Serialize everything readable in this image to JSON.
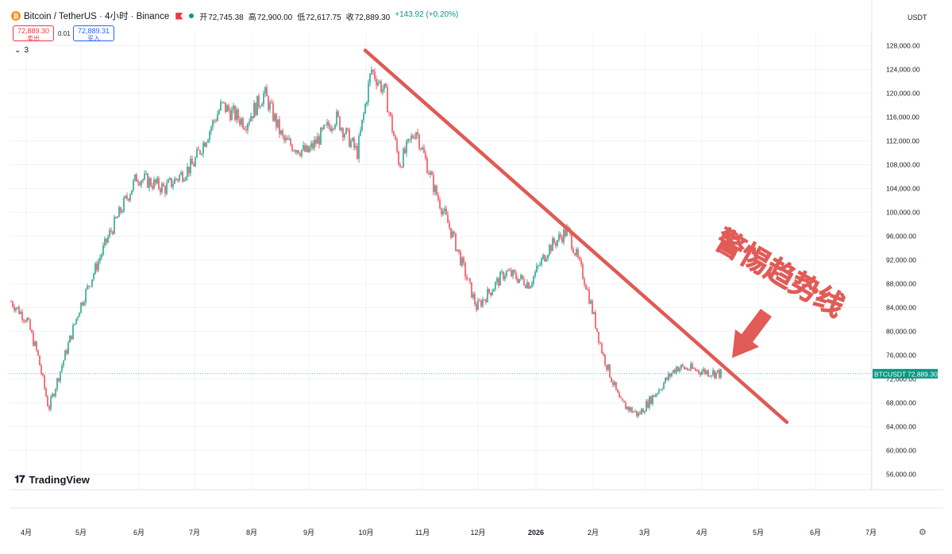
{
  "header": {
    "symbol_title": "Bitcoin / TetherUS · 4小时 · Binance",
    "open_label": "开",
    "open": "72,745.38",
    "high_label": "高",
    "high": "72,900.00",
    "low_label": "低",
    "low": "72,617.75",
    "close_label": "收",
    "close": "72,889.30",
    "change": "+143.92 (+0.20%)"
  },
  "trade": {
    "sell_price": "72,889.30",
    "sell_label": "卖出",
    "spread": "0.01",
    "buy_price": "72,889.31",
    "buy_label": "买入"
  },
  "indicator_toggle": "3",
  "currency_unit": "USDT",
  "brand": "TradingView",
  "annotation_text": "警惕趋势线",
  "colors": {
    "up": "#089981",
    "down": "#f23645",
    "trendline": "#e05a55",
    "price_tag": "#089981"
  },
  "chart_data": {
    "type": "line",
    "style": "candlestick",
    "y_axis": {
      "range": [
        54000,
        130000
      ],
      "ticks": [
        128000,
        124000,
        120000,
        116000,
        112000,
        108000,
        104000,
        100000,
        96000,
        92000,
        88000,
        84000,
        80000,
        76000,
        72000,
        68000,
        64000,
        60000,
        56000
      ],
      "tick_labels": [
        "128,000.00",
        "124,000.00",
        "120,000.00",
        "116,000.00",
        "112,000.00",
        "108,000.00",
        "104,000.00",
        "100,000.00",
        "96,000.00",
        "92,000.00",
        "88,000.00",
        "84,000.00",
        "80,000.00",
        "76,000.00",
        "72,000.00",
        "68,000.00",
        "64,000.00",
        "60,000.00",
        "56,000.00"
      ],
      "grid": true
    },
    "x_axis": {
      "labels": [
        "4月",
        "5月",
        "6月",
        "7月",
        "8月",
        "9月",
        "10月",
        "11月",
        "12月",
        "2026",
        "2月",
        "3月",
        "4月",
        "5月",
        "6月",
        "7月"
      ],
      "grid": true
    },
    "series": [
      {
        "x": [
          "4月",
          "4月",
          "4月",
          "5月",
          "5月",
          "6月",
          "6月",
          "7月",
          "7月",
          "8月",
          "8月",
          "8月",
          "9月",
          "9月",
          "10月",
          "10月",
          "10月",
          "10月",
          "11月",
          "11月",
          "11月",
          "12月",
          "12月",
          "2026",
          "2026",
          "2026",
          "2月",
          "2月",
          "2月",
          "3月",
          "3月",
          "3月",
          "4月",
          "4月"
        ],
        "values": [
          85000,
          82000,
          76000,
          84000,
          96000,
          106000,
          104000,
          108000,
          118000,
          115000,
          120000,
          112000,
          110000,
          116000,
          110000,
          124000,
          120000,
          108000,
          114000,
          104000,
          96000,
          84000,
          90000,
          88000,
          94000,
          97000,
          88000,
          76000,
          68000,
          66000,
          70000,
          74000,
          67000,
          72889
        ]
      }
    ],
    "trendline": {
      "start": {
        "x": "10月",
        "y": 128000
      },
      "end": {
        "x": "5月",
        "y": 65000
      }
    },
    "last_price": {
      "label": "BTCUSDT",
      "value": "72,889.30",
      "y": 72889.3
    }
  }
}
